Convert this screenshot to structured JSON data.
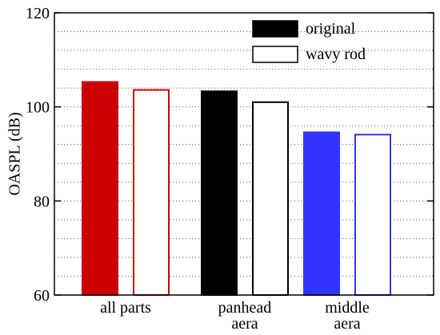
{
  "chart_data": {
    "type": "bar",
    "ylabel": "OASPL (dB)",
    "xlabel": "",
    "ylim": [
      60,
      120
    ],
    "yticks": [
      60,
      80,
      100,
      120
    ],
    "ytick_labels": [
      "60",
      "80",
      "100",
      "120"
    ],
    "grid": "horizontal dotted every 4 dB",
    "legend_position": "top-right",
    "categories": [
      {
        "label_lines": [
          "all parts"
        ]
      },
      {
        "label_lines": [
          "panhead",
          "aera"
        ]
      },
      {
        "label_lines": [
          "middle",
          "aera"
        ]
      }
    ],
    "series": [
      {
        "name": "original",
        "values": [
          105.3,
          103.3,
          94.6
        ]
      },
      {
        "name": "wavy rod",
        "values": [
          103.6,
          101.0,
          94.1
        ]
      }
    ],
    "bar_fill_colors": {
      "original": [
        "#cc0000",
        "#000000",
        "#3333ff"
      ],
      "wavy rod": [
        "#ffffff",
        "#ffffff",
        "#ffffff"
      ]
    },
    "bar_edge_colors": {
      "original": [
        "#cc0000",
        "#000000",
        "#3333ff"
      ],
      "wavy rod": [
        "#cc0000",
        "#000000",
        "#3333ff"
      ]
    },
    "legend": [
      {
        "label": "original",
        "fill": "#000000",
        "edge": "#000000"
      },
      {
        "label": "wavy rod",
        "fill": "#ffffff",
        "edge": "#000000"
      }
    ]
  }
}
